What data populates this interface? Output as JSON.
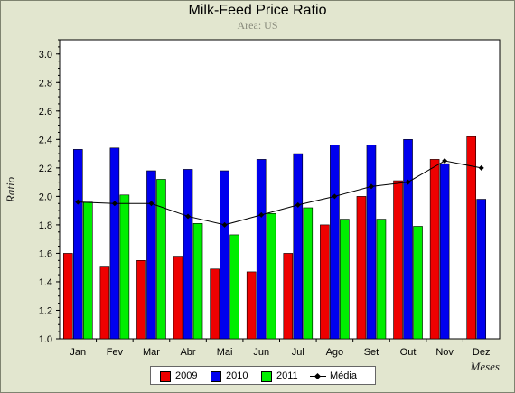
{
  "chart_data": {
    "type": "bar",
    "title": "Milk-Feed Price Ratio",
    "subtitle": "Area: US",
    "xlabel": "Meses",
    "ylabel": "Ratio",
    "categories": [
      "Jan",
      "Fev",
      "Mar",
      "Abr",
      "Mai",
      "Jun",
      "Jul",
      "Ago",
      "Set",
      "Out",
      "Nov",
      "Dez"
    ],
    "ylim": [
      1.0,
      3.1
    ],
    "yticks": [
      1.0,
      1.2,
      1.4,
      1.6,
      1.8,
      2.0,
      2.2,
      2.4,
      2.6,
      2.8,
      3.0
    ],
    "ytick_labels": [
      "1.0",
      "1.2",
      "1.4",
      "1.6",
      "1.8",
      "2.0",
      "2.2",
      "2.4",
      "2.6",
      "2.8",
      "3.0"
    ],
    "series": [
      {
        "name": "2009",
        "kind": "bar",
        "color": "#ee0000",
        "values": [
          1.6,
          1.51,
          1.55,
          1.58,
          1.49,
          1.47,
          1.6,
          1.8,
          2.0,
          2.11,
          2.26,
          2.42
        ]
      },
      {
        "name": "2010",
        "kind": "bar",
        "color": "#0000ee",
        "values": [
          2.33,
          2.34,
          2.18,
          2.19,
          2.18,
          2.26,
          2.3,
          2.36,
          2.36,
          2.4,
          2.23,
          1.98
        ]
      },
      {
        "name": "2011",
        "kind": "bar",
        "color": "#00ee00",
        "values": [
          1.96,
          2.01,
          2.12,
          1.81,
          1.73,
          1.88,
          1.92,
          1.84,
          1.84,
          1.79,
          null,
          null
        ]
      },
      {
        "name": "Média",
        "kind": "line",
        "color": "#000000",
        "values": [
          1.96,
          1.95,
          1.95,
          1.86,
          1.8,
          1.87,
          1.94,
          2.0,
          2.07,
          2.1,
          2.25,
          2.2
        ]
      }
    ],
    "grid": false,
    "legend_position": "bottom-center",
    "plot_background": "#ffffff",
    "frame_background": "#e2e6cf"
  }
}
